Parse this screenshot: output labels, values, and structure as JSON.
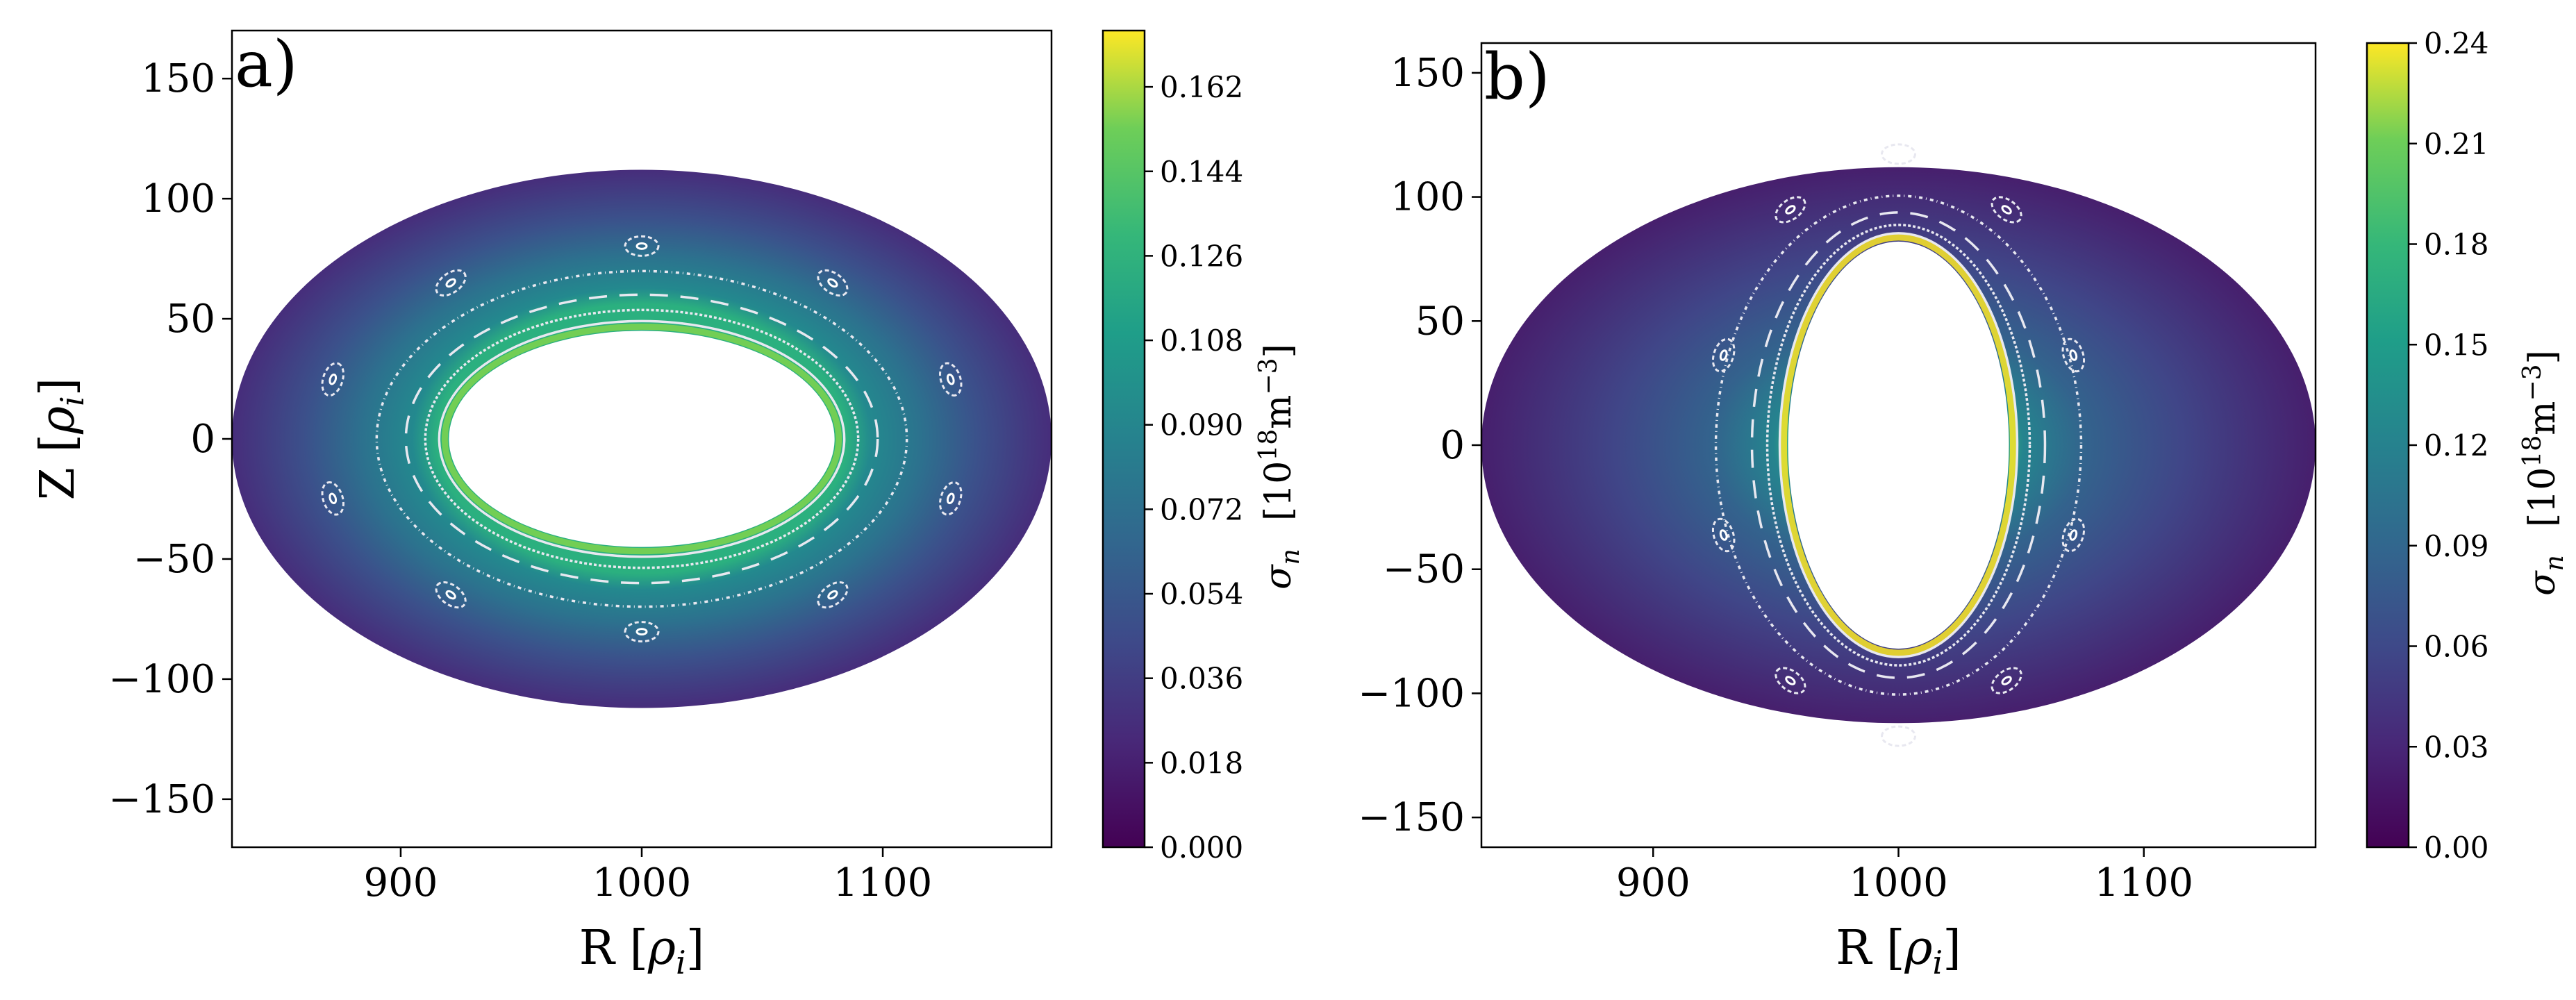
{
  "chart_data": [
    {
      "type": "heatmap",
      "panel_label": "a)",
      "xlabel": "R [ρᵢ]",
      "xlabel_main": "R [",
      "xlabel_sym": "ρ",
      "xlabel_sub": "i",
      "xlabel_end": "]",
      "ylabel": "Z [ρᵢ]",
      "ylabel_main": "Z [",
      "ylabel_sym": "ρ",
      "ylabel_sub": "i",
      "ylabel_end": "]",
      "xlim": [
        830,
        1170
      ],
      "ylim": [
        -170,
        170
      ],
      "xticks": [
        "900",
        "1000",
        "1100"
      ],
      "xtick_values": [
        900,
        1000,
        1100
      ],
      "yticks": [
        "150",
        "100",
        "50",
        "0",
        "−50",
        "−100",
        "−150"
      ],
      "ytick_values": [
        150,
        100,
        50,
        0,
        -50,
        -100,
        -150
      ],
      "domain": {
        "center_R": 1000,
        "center_Z": 0,
        "outer_semi_R": 170,
        "outer_semi_Z": 112,
        "inner_semi_R": 80,
        "inner_semi_Z": 45
      },
      "colorbar": {
        "label_sym": "σ",
        "label_sub": "n",
        "units": "[10¹⁸m⁻³]",
        "units_a": "[10",
        "units_exp": "18",
        "units_b": "m",
        "units_exp2": "−3",
        "units_c": "]",
        "min": 0.0,
        "max": 0.174,
        "ticks": [
          "0.000",
          "0.018",
          "0.036",
          "0.054",
          "0.072",
          "0.090",
          "0.108",
          "0.126",
          "0.144",
          "0.162"
        ],
        "tick_values": [
          0.0,
          0.018,
          0.036,
          0.054,
          0.072,
          0.09,
          0.108,
          0.126,
          0.144,
          0.162
        ]
      }
    },
    {
      "type": "heatmap",
      "panel_label": "b)",
      "xlabel": "R [ρᵢ]",
      "xlabel_main": "R [",
      "xlabel_sym": "ρ",
      "xlabel_sub": "i",
      "xlabel_end": "]",
      "xlim": [
        830,
        1170
      ],
      "ylim": [
        -162,
        162
      ],
      "xticks": [
        "900",
        "1000",
        "1100"
      ],
      "xtick_values": [
        900,
        1000,
        1100
      ],
      "yticks": [
        "150",
        "100",
        "50",
        "0",
        "−50",
        "−100",
        "−150"
      ],
      "ytick_values": [
        150,
        100,
        50,
        0,
        -50,
        -100,
        -150
      ],
      "domain": {
        "center_R": 1000,
        "center_Z": 0,
        "outer_semi_R": 170,
        "outer_semi_Z": 112,
        "inner_semi_R": 45,
        "inner_semi_Z": 82
      },
      "colorbar": {
        "label_sym": "σ",
        "label_sub": "n",
        "units": "[10¹⁸m⁻³]",
        "units_a": "[10",
        "units_exp": "18",
        "units_b": "m",
        "units_exp2": "−3",
        "units_c": "]",
        "min": 0.0,
        "max": 0.24,
        "ticks": [
          "0.00",
          "0.03",
          "0.06",
          "0.09",
          "0.12",
          "0.15",
          "0.18",
          "0.21",
          "0.24"
        ],
        "tick_values": [
          0.0,
          0.03,
          0.06,
          0.09,
          0.12,
          0.15,
          0.18,
          0.21,
          0.24
        ]
      }
    }
  ],
  "colors": {
    "viridis_dark": "#440154",
    "viridis_blue": "#31688e",
    "viridis_teal": "#21918c",
    "viridis_green": "#5ec962",
    "viridis_yellow": "#fde725",
    "poincare": "#e8e8f0"
  }
}
